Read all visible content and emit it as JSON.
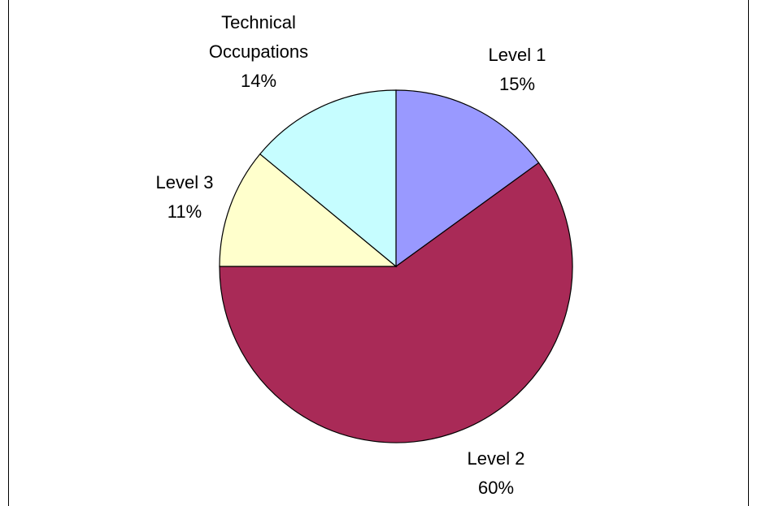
{
  "chart_data": {
    "type": "pie",
    "categories": [
      "Level 1",
      "Level 2",
      "Level 3",
      "Technical Occupations"
    ],
    "values": [
      15,
      60,
      11,
      14
    ],
    "value_labels": [
      "15%",
      "60%",
      "11%",
      "14%"
    ],
    "colors": [
      "#9999ff",
      "#a92a57",
      "#ffffcc",
      "#c6fdff"
    ]
  }
}
